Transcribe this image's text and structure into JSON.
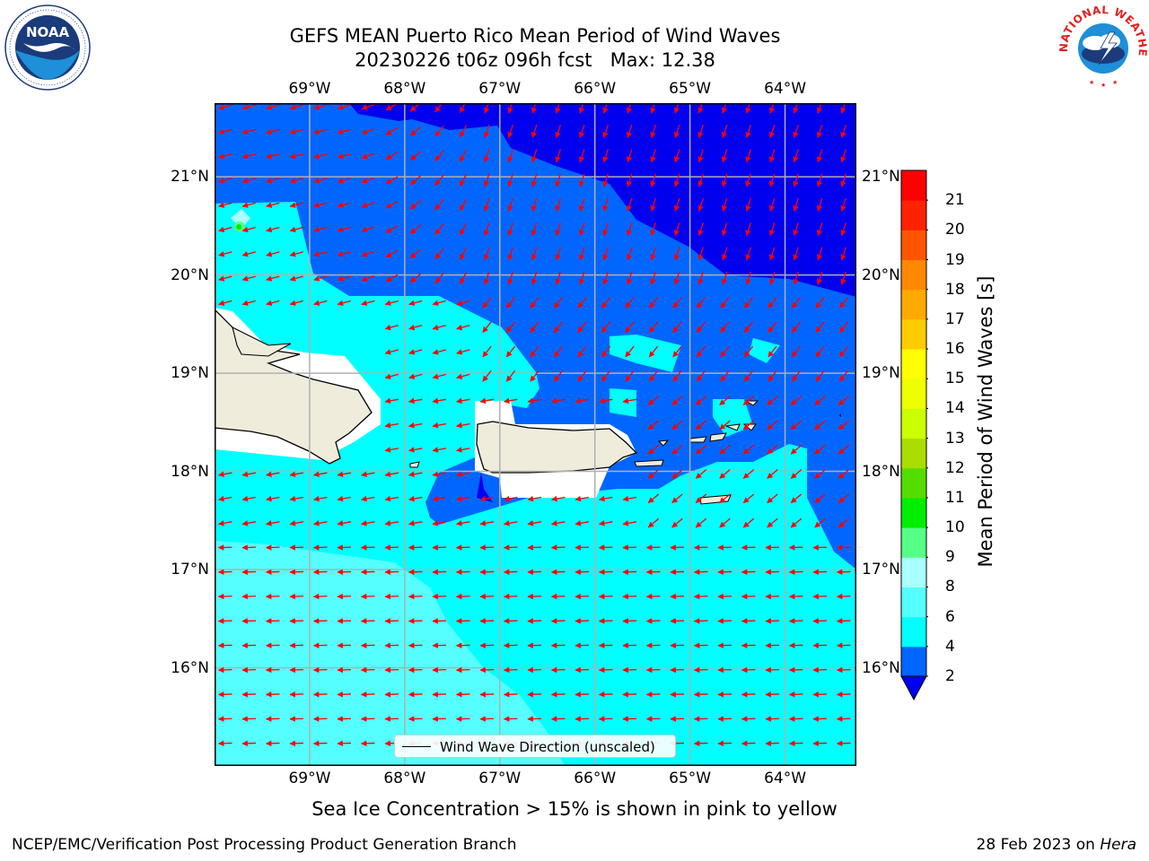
{
  "title": {
    "line1": "GEFS MEAN Puerto Rico Mean Period of Wind Waves",
    "line2": "20230226 t06z 096h fcst   Max: 12.38"
  },
  "logos": {
    "left": {
      "name": "noaa-logo",
      "text": "NOAA",
      "ring_text": "NATIONAL OCEANIC AND ATMOSPHERIC ADMINISTRATION · U.S. DEPARTMENT OF COMMERCE"
    },
    "right": {
      "name": "national-weather-service-logo",
      "ring_text": "NATIONAL WEATHER SERVICE"
    }
  },
  "map": {
    "lon_ticks": [
      "69°W",
      "68°W",
      "67°W",
      "66°W",
      "65°W",
      "64°W"
    ],
    "lat_ticks": [
      "21°N",
      "20°N",
      "19°N",
      "18°N",
      "17°N",
      "16°N"
    ],
    "lon_range": [
      -70.0,
      -63.25
    ],
    "lat_range": [
      15.0,
      21.75
    ],
    "gridlines": true,
    "arrow_color": "#ff0000",
    "land_color": "#efecdc",
    "contour_colors": {
      "2-4": "#0066ff",
      "4-6": "#00ffff",
      "6-8": "#55ffff",
      "below-2": "#0000ee"
    }
  },
  "legend": {
    "label": "Wind Wave Direction (unscaled)",
    "placement": "lower-center"
  },
  "colorbar": {
    "title": "Mean Period of Wind Waves [s]",
    "levels": [
      "2",
      "4",
      "6",
      "8",
      "9",
      "10",
      "11",
      "12",
      "13",
      "14",
      "15",
      "16",
      "17",
      "18",
      "19",
      "20",
      "21"
    ],
    "colors": [
      "#0066ff",
      "#00ffff",
      "#55ffff",
      "#aaffff",
      "#55ff88",
      "#00ee00",
      "#55dd00",
      "#aadd00",
      "#ccff00",
      "#eeff00",
      "#ffff00",
      "#ffcc00",
      "#ffaa00",
      "#ff8800",
      "#ff5500",
      "#ff2200",
      "#ff0000"
    ],
    "under_color": "#0000ee",
    "extend": "min"
  },
  "notes": {
    "ice": "Sea Ice Concentration > 15% is shown in pink to yellow"
  },
  "footer": {
    "left": "NCEP/EMC/Verification Post Processing Product Generation Branch",
    "right_date": "28 Feb 2023 on ",
    "right_host": "Hera"
  }
}
